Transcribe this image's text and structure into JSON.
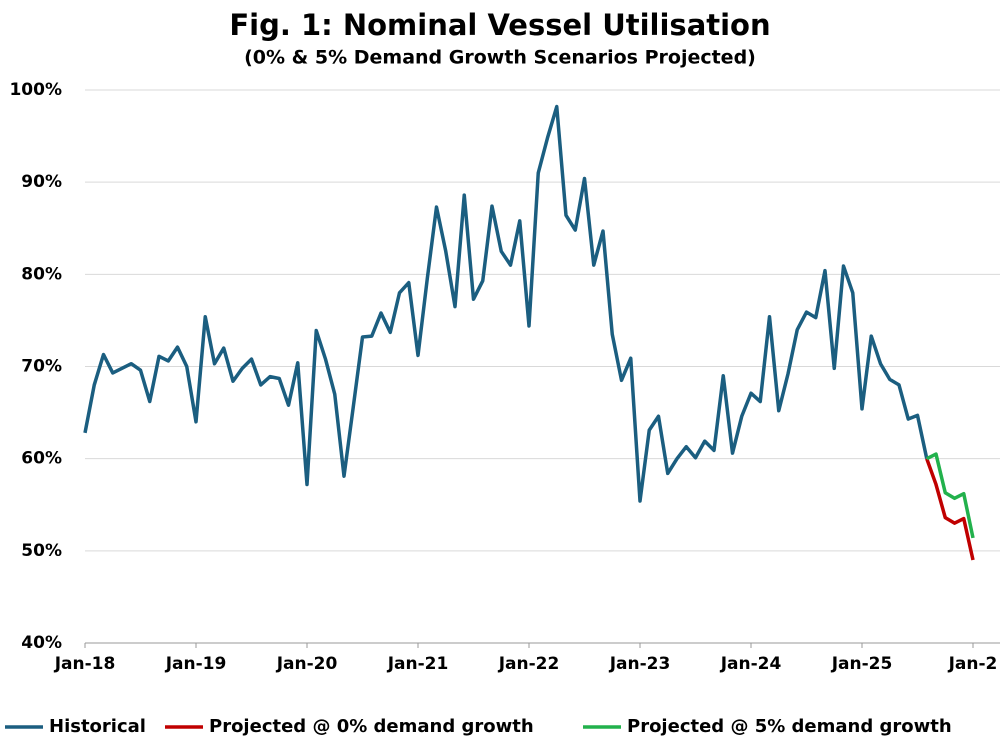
{
  "chart_data": {
    "type": "line",
    "title": "Fig. 1: Nominal Vessel Utilisation",
    "subtitle": "(0% & 5% Demand Growth Scenarios Projected)",
    "categories": [
      "Jan-18",
      null,
      null,
      null,
      null,
      null,
      null,
      null,
      null,
      null,
      null,
      null,
      "Jan-19",
      null,
      null,
      null,
      null,
      null,
      null,
      null,
      null,
      null,
      null,
      null,
      "Jan-20",
      null,
      null,
      null,
      null,
      null,
      null,
      null,
      null,
      null,
      null,
      null,
      "Jan-21",
      null,
      null,
      null,
      null,
      null,
      null,
      null,
      null,
      null,
      null,
      null,
      "Jan-22",
      null,
      null,
      null,
      null,
      null,
      null,
      null,
      null,
      null,
      null,
      null,
      "Jan-23",
      null,
      null,
      null,
      null,
      null,
      null,
      null,
      null,
      null,
      null,
      null,
      "Jan-24",
      null,
      null,
      null,
      null,
      null,
      null,
      null,
      null,
      null,
      null,
      null,
      "Jan-25",
      null,
      null,
      null,
      null,
      null,
      null,
      null,
      null,
      null,
      null,
      null,
      "Jan-2"
    ],
    "series": [
      {
        "name": "Historical",
        "color": "#1b5e80",
        "values": [
          62.8,
          68,
          71.3,
          69.3,
          69.8,
          70.3,
          69.6,
          66.2,
          71.1,
          70.6,
          72.1,
          70,
          64,
          75.4,
          70.3,
          72,
          68.4,
          69.8,
          70.8,
          68,
          68.9,
          68.7,
          65.8,
          70.4,
          57.2,
          73.9,
          70.8,
          67,
          58.1,
          65.6,
          73.2,
          73.3,
          75.8,
          73.7,
          78,
          79.1,
          71.2,
          79.5,
          87.3,
          82.5,
          76.5,
          88.6,
          77.3,
          79.3,
          87.4,
          82.5,
          81,
          85.8,
          74.4,
          91,
          94.8,
          98.2,
          86.4,
          84.8,
          90.4,
          81,
          84.7,
          73.5,
          68.5,
          70.9,
          55.4,
          63.1,
          64.6,
          58.4,
          60,
          61.3,
          60.1,
          61.9,
          60.9,
          69,
          60.6,
          64.6,
          67.1,
          66.2,
          75.4,
          65.2,
          69.2,
          74,
          75.9,
          75.3,
          80.4,
          69.8,
          80.9,
          78,
          65.4,
          73.3,
          70.3,
          68.6,
          68,
          64.3,
          64.7,
          60,
          null,
          null,
          null,
          null,
          null
        ]
      },
      {
        "name": "Projected @ 0% demand growth",
        "color": "#c00000",
        "values": [
          null,
          null,
          null,
          null,
          null,
          null,
          null,
          null,
          null,
          null,
          null,
          null,
          null,
          null,
          null,
          null,
          null,
          null,
          null,
          null,
          null,
          null,
          null,
          null,
          null,
          null,
          null,
          null,
          null,
          null,
          null,
          null,
          null,
          null,
          null,
          null,
          null,
          null,
          null,
          null,
          null,
          null,
          null,
          null,
          null,
          null,
          null,
          null,
          null,
          null,
          null,
          null,
          null,
          null,
          null,
          null,
          null,
          null,
          null,
          null,
          null,
          null,
          null,
          null,
          null,
          null,
          null,
          null,
          null,
          null,
          null,
          null,
          null,
          null,
          null,
          null,
          null,
          null,
          null,
          null,
          null,
          null,
          null,
          null,
          null,
          null,
          null,
          null,
          null,
          null,
          null,
          60,
          57.2,
          53.6,
          53,
          53.5,
          49
        ]
      },
      {
        "name": "Projected @ 5% demand growth",
        "color": "#22b14c",
        "values": [
          null,
          null,
          null,
          null,
          null,
          null,
          null,
          null,
          null,
          null,
          null,
          null,
          null,
          null,
          null,
          null,
          null,
          null,
          null,
          null,
          null,
          null,
          null,
          null,
          null,
          null,
          null,
          null,
          null,
          null,
          null,
          null,
          null,
          null,
          null,
          null,
          null,
          null,
          null,
          null,
          null,
          null,
          null,
          null,
          null,
          null,
          null,
          null,
          null,
          null,
          null,
          null,
          null,
          null,
          null,
          null,
          null,
          null,
          null,
          null,
          null,
          null,
          null,
          null,
          null,
          null,
          null,
          null,
          null,
          null,
          null,
          null,
          null,
          null,
          null,
          null,
          null,
          null,
          null,
          null,
          null,
          null,
          null,
          null,
          null,
          null,
          null,
          null,
          null,
          null,
          null,
          60,
          60.5,
          56.3,
          55.7,
          56.2,
          51.4
        ]
      }
    ],
    "ylim": [
      40,
      100
    ],
    "yticks": [
      {
        "value": 40,
        "label": "40%"
      },
      {
        "value": 50,
        "label": "50%"
      },
      {
        "value": 60,
        "label": "60%"
      },
      {
        "value": 70,
        "label": "70%"
      },
      {
        "value": 80,
        "label": "80%"
      },
      {
        "value": 90,
        "label": "90%"
      },
      {
        "value": 100,
        "label": "100%"
      }
    ],
    "grid": true,
    "legend": "bottom"
  }
}
